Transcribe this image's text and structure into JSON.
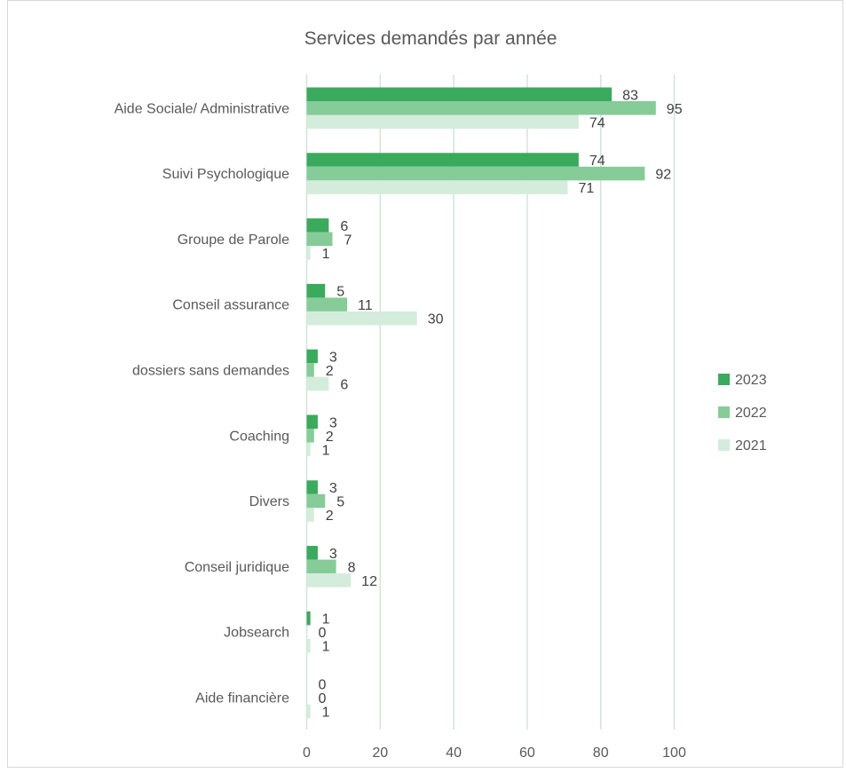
{
  "chart_data": {
    "type": "bar",
    "orientation": "horizontal",
    "title": "Services demandés par année",
    "categories": [
      "Aide Sociale/ Administrative",
      "Suivi Psychologique",
      "Groupe de Parole",
      "Conseil assurance",
      "dossiers sans demandes",
      "Coaching",
      "Divers",
      "Conseil juridique",
      "Jobsearch",
      "Aide financière"
    ],
    "series": [
      {
        "name": "2023",
        "color": "#3aaa5c",
        "values": [
          83,
          74,
          6,
          5,
          3,
          3,
          3,
          3,
          1,
          0
        ]
      },
      {
        "name": "2022",
        "color": "#85cc98",
        "values": [
          95,
          92,
          7,
          11,
          2,
          2,
          5,
          8,
          0,
          0
        ]
      },
      {
        "name": "2021",
        "color": "#d4ecdb",
        "values": [
          74,
          71,
          1,
          30,
          6,
          1,
          2,
          12,
          1,
          1
        ]
      }
    ],
    "xlim": [
      0,
      100
    ],
    "xticks": [
      "0",
      "20",
      "40",
      "60",
      "80",
      "100"
    ],
    "grid": true,
    "gridline_color": "#cfe6d8",
    "legend": "right"
  }
}
